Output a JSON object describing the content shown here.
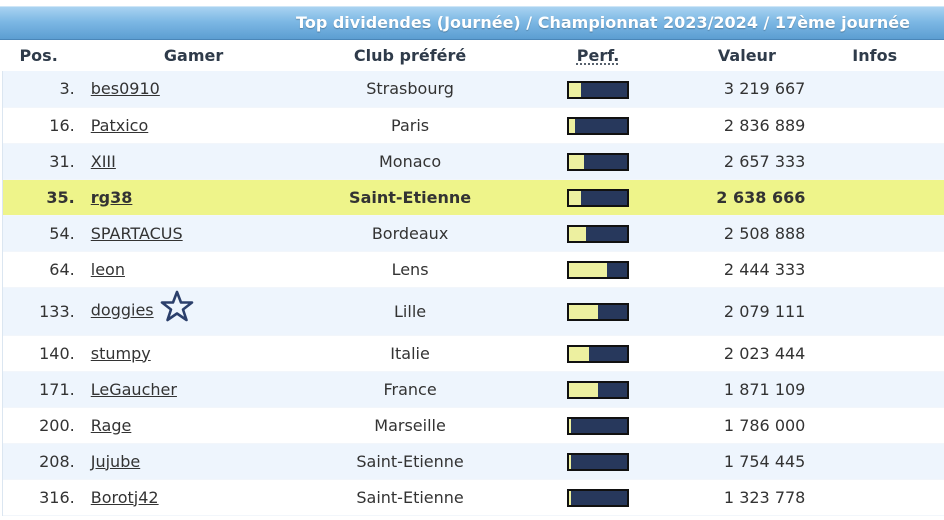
{
  "title": "Top dividendes (Journée) / Championnat 2023/2024 / 17ème journée",
  "columns": {
    "pos": "Pos.",
    "gamer": "Gamer",
    "club": "Club préféré",
    "perf": "Perf.",
    "value": "Valeur",
    "infos": "Infos"
  },
  "rows": [
    {
      "pos": "3.",
      "gamer": "bes0910",
      "club": "Strasbourg",
      "perf": 0.2,
      "value": "3 219 667"
    },
    {
      "pos": "16.",
      "gamer": "Patxico",
      "club": "Paris",
      "perf": 0.1,
      "value": "2 836 889"
    },
    {
      "pos": "31.",
      "gamer": "XIII",
      "club": "Monaco",
      "perf": 0.25,
      "value": "2 657 333"
    },
    {
      "pos": "35.",
      "gamer": "rg38",
      "club": "Saint-Etienne",
      "perf": 0.2,
      "value": "2 638 666"
    },
    {
      "pos": "54.",
      "gamer": "SPARTACUS",
      "club": "Bordeaux",
      "perf": 0.3,
      "value": "2 508 888"
    },
    {
      "pos": "64.",
      "gamer": "leon",
      "club": "Lens",
      "perf": 0.65,
      "value": "2 444 333"
    },
    {
      "pos": "133.",
      "gamer": "doggies",
      "club": "Lille",
      "perf": 0.5,
      "value": "2 079 111"
    },
    {
      "pos": "140.",
      "gamer": "stumpy",
      "club": "Italie",
      "perf": 0.35,
      "value": "2 023 444"
    },
    {
      "pos": "171.",
      "gamer": "LeGaucher",
      "club": "France",
      "perf": 0.5,
      "value": "1 871 109"
    },
    {
      "pos": "200.",
      "gamer": "Rage",
      "club": "Marseille",
      "perf": 0.04,
      "value": "1 786 000"
    },
    {
      "pos": "208.",
      "gamer": "Jujube",
      "club": "Saint-Etienne",
      "perf": 0.04,
      "value": "1 754 445"
    },
    {
      "pos": "316.",
      "gamer": "Borotj42",
      "club": "Saint-Etienne",
      "perf": 0.04,
      "value": "1 323 778"
    }
  ],
  "highlight_row": 3,
  "star_row": 6,
  "icons": {
    "star": "star-outline-icon"
  },
  "colors": {
    "header_bar": "#6aaadb",
    "highlight": "#eef48a",
    "bar_fill": "#edf0a0",
    "bar_bg": "#27385c"
  }
}
